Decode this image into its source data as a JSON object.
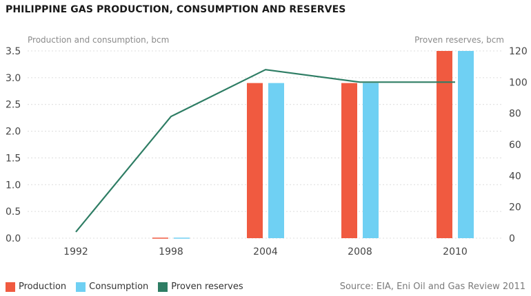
{
  "chart_data": {
    "type": "bar+line",
    "title": "PHILIPPINE GAS PRODUCTION, CONSUMPTION AND RESERVES",
    "categories": [
      "1992",
      "1998",
      "2004",
      "2008",
      "2010"
    ],
    "left_axis": {
      "label": "Production and consumption, bcm",
      "ylim": [
        0,
        3.5
      ],
      "ticks": [
        "0.0",
        "0.5",
        "1.0",
        "1.5",
        "2.0",
        "2.5",
        "3.0",
        "3.5"
      ]
    },
    "right_axis": {
      "label": "Proven reserves, bcm",
      "ylim": [
        0,
        120
      ],
      "ticks": [
        "0",
        "20",
        "40",
        "60",
        "80",
        "100",
        "120"
      ]
    },
    "series": [
      {
        "name": "Production",
        "type": "bar",
        "axis": "left",
        "color": "#f05a40",
        "values": [
          0,
          0.01,
          2.9,
          2.9,
          3.5
        ]
      },
      {
        "name": "Consumption",
        "type": "bar",
        "axis": "left",
        "color": "#6fd0f3",
        "values": [
          0,
          0.01,
          2.9,
          2.9,
          3.5
        ]
      },
      {
        "name": "Proven reserves",
        "type": "line",
        "axis": "right",
        "color": "#2e7d64",
        "values": [
          4,
          78,
          108,
          100,
          100
        ]
      }
    ],
    "grid": true,
    "legend_position": "bottom-left"
  },
  "source": "Source: EIA, Eni Oil and Gas Review 2011"
}
